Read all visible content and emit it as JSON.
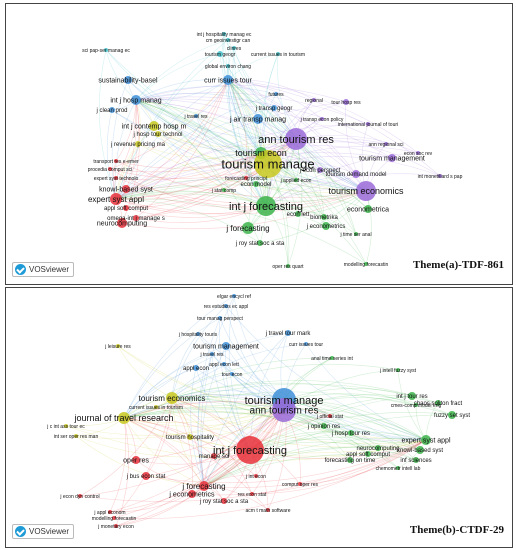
{
  "colors": {
    "red": "#e8303a",
    "green": "#3cb44b",
    "blue": "#3e8fd8",
    "yellow": "#c8c820",
    "purple": "#9a6ad8",
    "cyan": "#40c0c8",
    "orange": "#e89030"
  },
  "panels": [
    {
      "id": "a",
      "caption": "Theme(a)-TDF-861",
      "logo_text": "VOSviewer",
      "nodes": [
        {
          "label": "int j hospitality manag ec",
          "color": "cyan"
        },
        {
          "label": "cm geoinvestigr can",
          "color": "cyan"
        },
        {
          "label": "clinres",
          "color": "cyan"
        },
        {
          "label": "tourism geogr",
          "color": "cyan"
        },
        {
          "label": "current issues in tourism",
          "color": "cyan"
        },
        {
          "label": "sci pap-ser manag ec",
          "color": "cyan"
        },
        {
          "label": "global environ chang",
          "color": "cyan"
        },
        {
          "label": "sustainability-basel",
          "color": "blue"
        },
        {
          "label": "curr issues tour",
          "color": "blue"
        },
        {
          "label": "futures",
          "color": "blue"
        },
        {
          "label": "regional",
          "color": "purple"
        },
        {
          "label": "tour hosp res",
          "color": "purple"
        },
        {
          "label": "int j hosp manag",
          "color": "blue"
        },
        {
          "label": "j clean prod",
          "color": "blue"
        },
        {
          "label": "j travel res",
          "color": "blue"
        },
        {
          "label": "j transp geogr",
          "color": "blue"
        },
        {
          "label": "j transp econ policy",
          "color": "purple"
        },
        {
          "label": "international journal of touri",
          "color": "purple"
        },
        {
          "label": "j air transp manag",
          "color": "blue"
        },
        {
          "label": "int j contemp hosp m",
          "color": "yellow"
        },
        {
          "label": "j hosp tour technol",
          "color": "yellow"
        },
        {
          "label": "j revenue pricing ma",
          "color": "yellow"
        },
        {
          "label": "ann tourism res",
          "color": "purple"
        },
        {
          "label": "ann regional sci",
          "color": "purple"
        },
        {
          "label": "econ soc rev",
          "color": "purple"
        },
        {
          "label": "tourism econ",
          "color": "green"
        },
        {
          "label": "tourism manage",
          "color": "yellow"
        },
        {
          "label": "transport res e-emer",
          "color": "red"
        },
        {
          "label": "procedia comput sci",
          "color": "red"
        },
        {
          "label": "expert syst technolo",
          "color": "red"
        },
        {
          "label": "forecasting principl",
          "color": "red"
        },
        {
          "label": "tourism management",
          "color": "purple"
        },
        {
          "label": "int monetiliard s pap",
          "color": "purple"
        },
        {
          "label": "j econ perspect",
          "color": "purple"
        },
        {
          "label": "tourism demand model",
          "color": "purple"
        },
        {
          "label": "knowl-based syst",
          "color": "red"
        },
        {
          "label": "expert syst appl",
          "color": "red"
        },
        {
          "label": "econ model",
          "color": "green"
        },
        {
          "label": "j applied econ",
          "color": "green"
        },
        {
          "label": "tourism economics",
          "color": "purple"
        },
        {
          "label": "appl soft comput",
          "color": "red"
        },
        {
          "label": "j stat comp",
          "color": "green"
        },
        {
          "label": "omega-int j manage s",
          "color": "red"
        },
        {
          "label": "neurocomputing",
          "color": "red"
        },
        {
          "label": "int j forecasting",
          "color": "green"
        },
        {
          "label": "econometrica",
          "color": "green"
        },
        {
          "label": "biometrika",
          "color": "green"
        },
        {
          "label": "econ lett",
          "color": "green"
        },
        {
          "label": "j forecasting",
          "color": "green"
        },
        {
          "label": "j econometrics",
          "color": "green"
        },
        {
          "label": "j time ser anal",
          "color": "green"
        },
        {
          "label": "j roy stat soc a sta",
          "color": "green"
        },
        {
          "label": "oper res quart",
          "color": "green"
        },
        {
          "label": "modelling forecastin",
          "color": "green"
        }
      ]
    },
    {
      "id": "b",
      "caption": "Theme(b)-CTDF-29",
      "logo_text": "VOSviewer",
      "nodes": [
        {
          "label": "elgar encycl ref",
          "color": "blue"
        },
        {
          "label": "res estudios ec appl",
          "color": "blue"
        },
        {
          "label": "tour manag perspect",
          "color": "blue"
        },
        {
          "label": "j hospitality touris",
          "color": "blue"
        },
        {
          "label": "j travel tour mark",
          "color": "blue"
        },
        {
          "label": "j leisure res",
          "color": "yellow"
        },
        {
          "label": "tourism management",
          "color": "blue"
        },
        {
          "label": "curr issues tour",
          "color": "blue"
        },
        {
          "label": "j travel res",
          "color": "blue"
        },
        {
          "label": "appl econ lett",
          "color": "blue"
        },
        {
          "label": "appl econ",
          "color": "blue"
        },
        {
          "label": "j intell fuzzy syst",
          "color": "green"
        },
        {
          "label": "anal time series int",
          "color": "green"
        },
        {
          "label": "tour econ",
          "color": "blue"
        },
        {
          "label": "int j tour res",
          "color": "green"
        },
        {
          "label": "cmes-comp model eng",
          "color": "green"
        },
        {
          "label": "tourism economics",
          "color": "yellow"
        },
        {
          "label": "tourism manage",
          "color": "blue"
        },
        {
          "label": "ann tourism res",
          "color": "purple"
        },
        {
          "label": "chaos soliton fract",
          "color": "green"
        },
        {
          "label": "fuzzy set syst",
          "color": "green"
        },
        {
          "label": "current issues in tourism",
          "color": "yellow"
        },
        {
          "label": "journal of travel research",
          "color": "yellow"
        },
        {
          "label": "j c int ass tour ec",
          "color": "yellow"
        },
        {
          "label": "int ser oper res man",
          "color": "yellow"
        },
        {
          "label": "tourism hospitality",
          "color": "yellow"
        },
        {
          "label": "j official stat",
          "color": "red"
        },
        {
          "label": "j opinion res",
          "color": "green"
        },
        {
          "label": "j hosp tour res",
          "color": "green"
        },
        {
          "label": "expert syst appl",
          "color": "green"
        },
        {
          "label": "knowl-based syst",
          "color": "green"
        },
        {
          "label": "int j forecasting",
          "color": "red"
        },
        {
          "label": "oper res",
          "color": "red"
        },
        {
          "label": "forecasting on time",
          "color": "green"
        },
        {
          "label": "neurocomputing",
          "color": "green"
        },
        {
          "label": "appl soft comput",
          "color": "green"
        },
        {
          "label": "inf sciences",
          "color": "green"
        },
        {
          "label": "chemometr intell lab",
          "color": "green"
        },
        {
          "label": "manage sci",
          "color": "red"
        },
        {
          "label": "j bus econ stat",
          "color": "red"
        },
        {
          "label": "j forecasting",
          "color": "red"
        },
        {
          "label": "j econometrics",
          "color": "red"
        },
        {
          "label": "j int econ",
          "color": "red"
        },
        {
          "label": "comput oper res",
          "color": "red"
        },
        {
          "label": "j roy stat soc a sta",
          "color": "red"
        },
        {
          "label": "res econ stat",
          "color": "red"
        },
        {
          "label": "acm t math software",
          "color": "red"
        },
        {
          "label": "j econ dyn control",
          "color": "red"
        },
        {
          "label": "j appl econom",
          "color": "red"
        },
        {
          "label": "modelling forecastin",
          "color": "red"
        },
        {
          "label": "j monetary econ",
          "color": "red"
        }
      ]
    }
  ]
}
